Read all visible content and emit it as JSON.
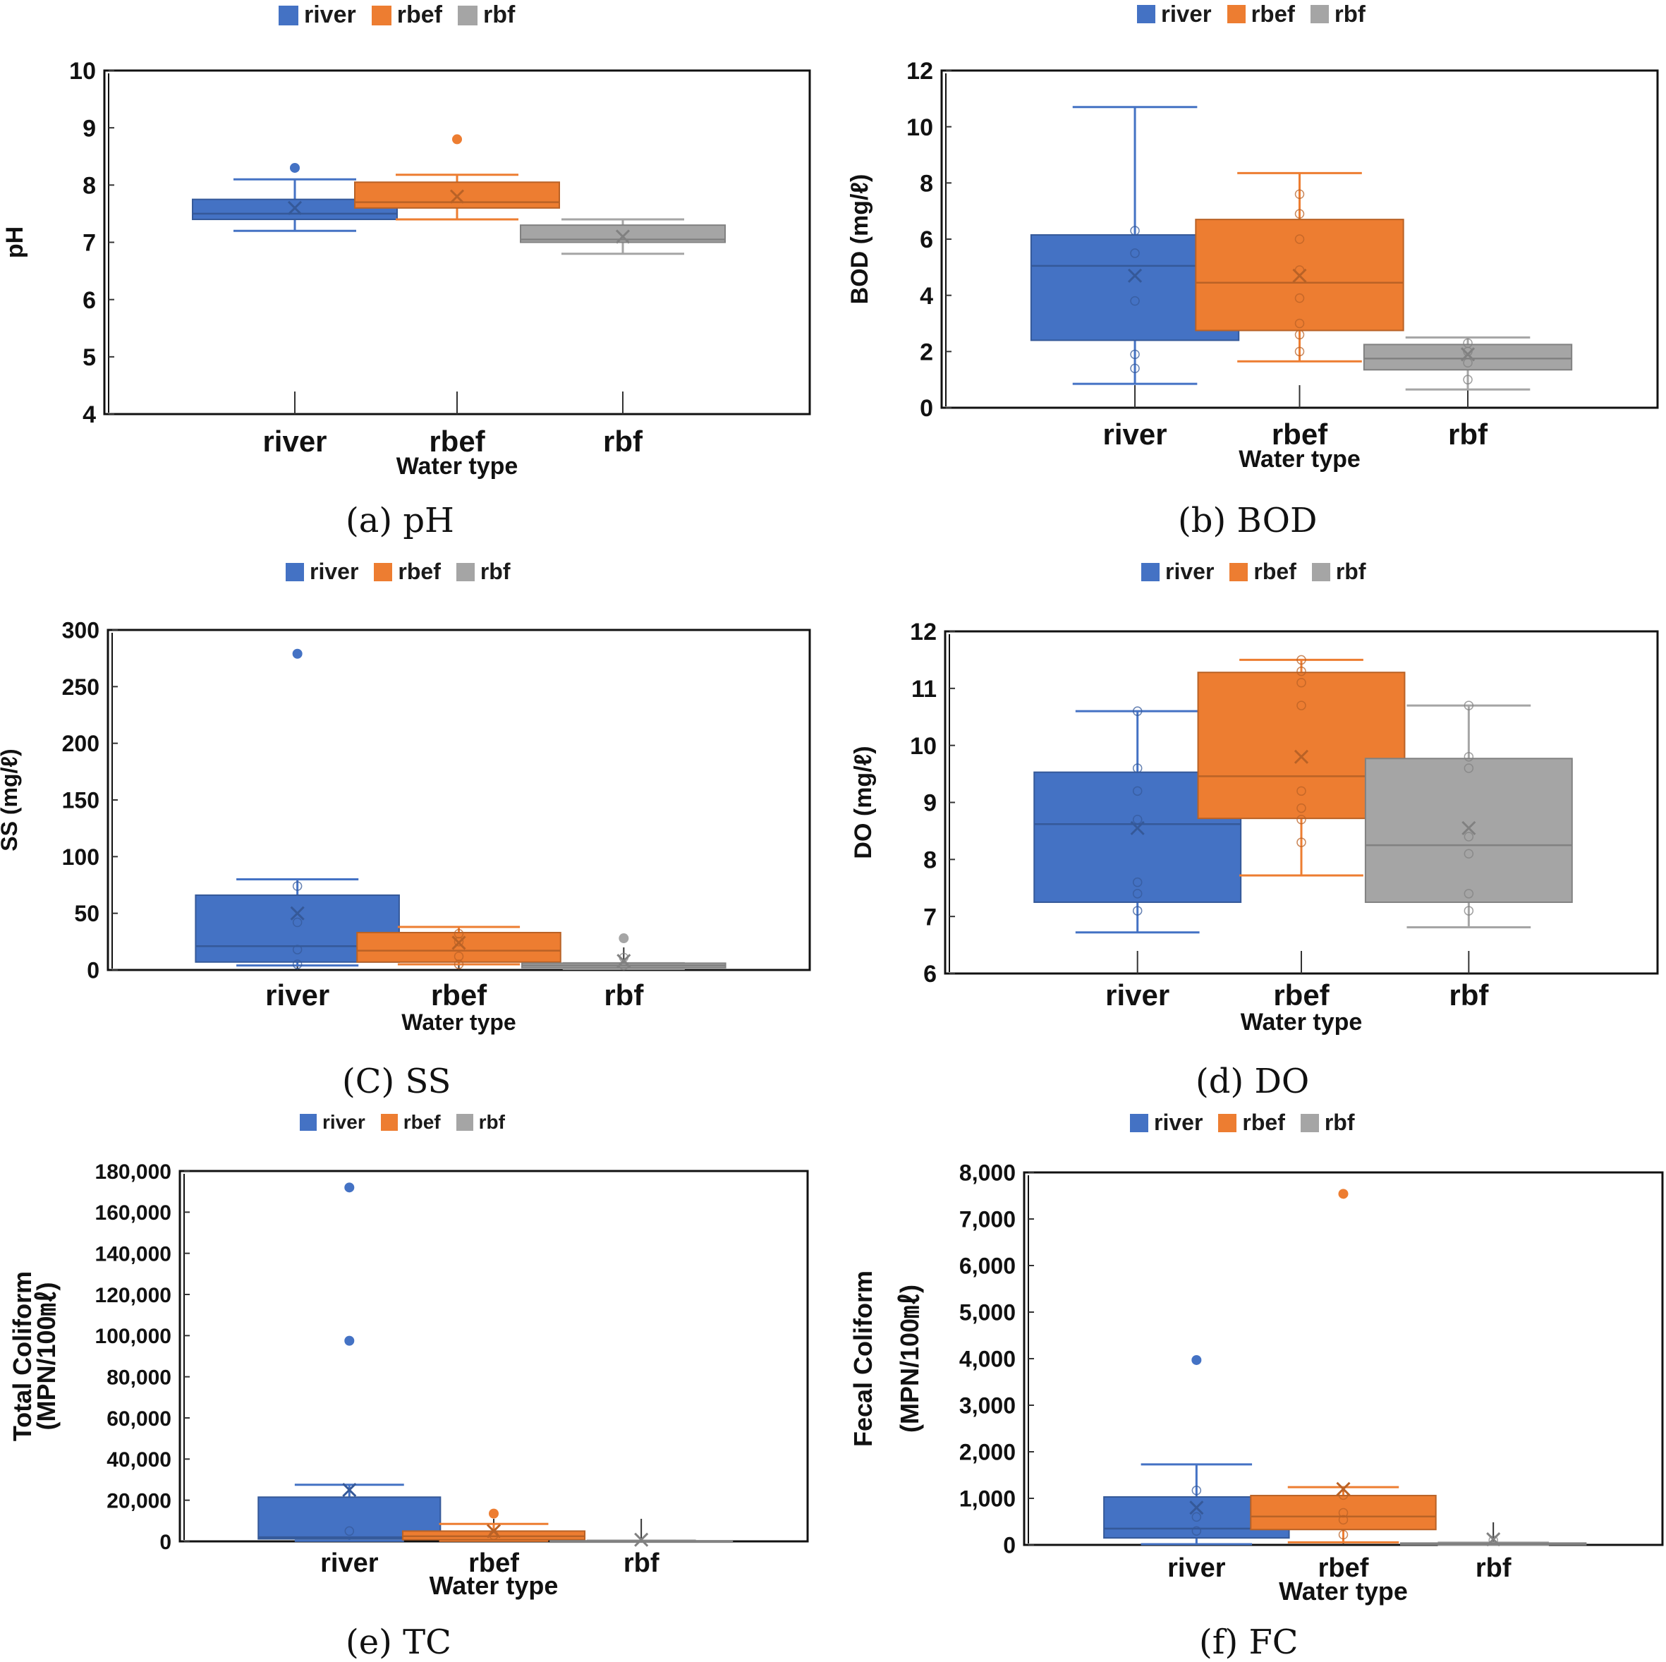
{
  "colors": {
    "river": "#4472C4",
    "rbef": "#ED7D31",
    "rbf": "#A5A5A5",
    "axis": "#111111"
  },
  "legend": [
    {
      "key": "river",
      "label": "river"
    },
    {
      "key": "rbef",
      "label": "rbef"
    },
    {
      "key": "rbf",
      "label": "rbf"
    }
  ],
  "chart_data": [
    {
      "id": "ph",
      "type": "box",
      "caption": "(a)  pH",
      "title": "",
      "xlabel": "Water type",
      "ylabel": "pH",
      "ylabel2": "",
      "categories": [
        "river",
        "rbef",
        "rbf"
      ],
      "ylim": [
        4,
        10
      ],
      "yticks": [
        4,
        5,
        6,
        7,
        8,
        9,
        10
      ],
      "ytick_labels": [
        "4",
        "5",
        "6",
        "7",
        "8",
        "9",
        "10"
      ],
      "legend_position": "top-center",
      "grid": false,
      "series": [
        {
          "name": "river",
          "whisker_low": 7.2,
          "q1": 7.4,
          "median": 7.5,
          "q3": 7.75,
          "whisker_high": 8.1,
          "mean": 7.6,
          "points": [],
          "outliers": [
            8.3
          ]
        },
        {
          "name": "rbef",
          "whisker_low": 7.4,
          "q1": 7.6,
          "median": 7.7,
          "q3": 8.05,
          "whisker_high": 8.18,
          "mean": 7.8,
          "points": [],
          "outliers": [
            8.8
          ]
        },
        {
          "name": "rbf",
          "whisker_low": 6.8,
          "q1": 7.0,
          "median": 7.05,
          "q3": 7.3,
          "whisker_high": 7.4,
          "mean": 7.1,
          "points": [],
          "outliers": []
        }
      ]
    },
    {
      "id": "bod",
      "type": "box",
      "caption": "(b)  BOD",
      "title": "",
      "xlabel": "Water type",
      "ylabel": "BOD (mg/ℓ)",
      "ylabel2": "",
      "categories": [
        "river",
        "rbef",
        "rbf"
      ],
      "ylim": [
        0,
        12
      ],
      "yticks": [
        0,
        2,
        4,
        6,
        8,
        10,
        12
      ],
      "ytick_labels": [
        "0",
        "2",
        "4",
        "6",
        "8",
        "10",
        "12"
      ],
      "legend_position": "top-center",
      "grid": false,
      "series": [
        {
          "name": "river",
          "whisker_low": 0.85,
          "q1": 2.4,
          "median": 5.05,
          "q3": 6.15,
          "whisker_high": 10.7,
          "mean": 4.7,
          "points": [
            6.3,
            5.5,
            3.8,
            1.9,
            1.4
          ],
          "outliers": []
        },
        {
          "name": "rbef",
          "whisker_low": 1.65,
          "q1": 2.75,
          "median": 4.45,
          "q3": 6.7,
          "whisker_high": 8.35,
          "mean": 4.7,
          "points": [
            7.6,
            6.9,
            6.0,
            4.9,
            3.9,
            3.0,
            2.6,
            2.0
          ],
          "outliers": []
        },
        {
          "name": "rbf",
          "whisker_low": 0.65,
          "q1": 1.35,
          "median": 1.75,
          "q3": 2.25,
          "whisker_high": 2.5,
          "mean": 1.9,
          "points": [
            2.3,
            2.0,
            1.6,
            1.0
          ],
          "outliers": []
        }
      ]
    },
    {
      "id": "ss",
      "type": "box",
      "caption": "(C)  SS",
      "title": "",
      "xlabel": "Water type",
      "ylabel": "SS (mg/ℓ)",
      "ylabel2": "",
      "categories": [
        "river",
        "rbef",
        "rbf"
      ],
      "ylim": [
        0,
        300
      ],
      "yticks": [
        0,
        50,
        100,
        150,
        200,
        250,
        300
      ],
      "ytick_labels": [
        "0",
        "50",
        "100",
        "150",
        "200",
        "250",
        "300"
      ],
      "legend_position": "top-center",
      "grid": false,
      "series": [
        {
          "name": "river",
          "whisker_low": 4,
          "q1": 7,
          "median": 21,
          "q3": 66,
          "whisker_high": 80,
          "mean": 50,
          "points": [
            74,
            42,
            18,
            5
          ],
          "outliers": [
            279
          ]
        },
        {
          "name": "rbef",
          "whisker_low": 5,
          "q1": 7,
          "median": 17,
          "q3": 33,
          "whisker_high": 38,
          "mean": 24,
          "points": [
            32,
            25,
            12,
            5
          ],
          "outliers": []
        },
        {
          "name": "rbf",
          "whisker_low": 1,
          "q1": 2,
          "median": 4,
          "q3": 6,
          "whisker_high": 6,
          "mean": 8,
          "points": [
            11,
            4
          ],
          "outliers": [
            28
          ]
        }
      ]
    },
    {
      "id": "do",
      "type": "box",
      "caption": "(d)  DO",
      "title": "",
      "xlabel": "Water type",
      "ylabel": "DO (mg/ℓ)",
      "ylabel2": "",
      "categories": [
        "river",
        "rbef",
        "rbf"
      ],
      "ylim": [
        6,
        12
      ],
      "yticks": [
        6,
        7,
        8,
        9,
        10,
        11,
        12
      ],
      "ytick_labels": [
        "6",
        "7",
        "8",
        "9",
        "10",
        "11",
        "12"
      ],
      "legend_position": "top-center",
      "grid": false,
      "series": [
        {
          "name": "river",
          "whisker_low": 6.72,
          "q1": 7.25,
          "median": 8.62,
          "q3": 9.53,
          "whisker_high": 10.6,
          "mean": 8.55,
          "points": [
            10.6,
            9.6,
            9.2,
            8.7,
            7.6,
            7.4,
            7.1
          ],
          "outliers": []
        },
        {
          "name": "rbef",
          "whisker_low": 7.72,
          "q1": 8.72,
          "median": 9.46,
          "q3": 11.28,
          "whisker_high": 11.5,
          "mean": 9.8,
          "points": [
            11.5,
            11.3,
            11.1,
            10.7,
            9.2,
            8.9,
            8.7,
            8.3
          ],
          "outliers": []
        },
        {
          "name": "rbf",
          "whisker_low": 6.81,
          "q1": 7.25,
          "median": 8.25,
          "q3": 9.77,
          "whisker_high": 10.7,
          "mean": 8.55,
          "points": [
            10.7,
            9.8,
            9.6,
            8.4,
            8.1,
            7.4,
            7.1
          ],
          "outliers": []
        }
      ]
    },
    {
      "id": "tc",
      "type": "box",
      "caption": "(e)  TC",
      "title": "",
      "xlabel": "Water type",
      "ylabel": "Total Coliform",
      "ylabel2": "(MPN/100㎖)",
      "categories": [
        "river",
        "rbef",
        "rbf"
      ],
      "ylim": [
        0,
        180000
      ],
      "yticks": [
        0,
        20000,
        40000,
        60000,
        80000,
        100000,
        120000,
        140000,
        160000,
        180000
      ],
      "ytick_labels": [
        "0",
        "20,000",
        "40,000",
        "60,000",
        "80,000",
        "100,000",
        "120,000",
        "140,000",
        "160,000",
        "180,000"
      ],
      "legend_position": "top-center",
      "grid": false,
      "series": [
        {
          "name": "river",
          "whisker_low": 300,
          "q1": 1200,
          "median": 2000,
          "q3": 21500,
          "whisker_high": 27500,
          "mean": 25000,
          "points": [
            5000
          ],
          "outliers": [
            172000,
            97500
          ]
        },
        {
          "name": "rbef",
          "whisker_low": 300,
          "q1": 800,
          "median": 2500,
          "q3": 5000,
          "whisker_high": 8500,
          "mean": 5000,
          "points": [
            3000
          ],
          "outliers": [
            13500
          ]
        },
        {
          "name": "rbf",
          "whisker_low": 0,
          "q1": 0,
          "median": 100,
          "q3": 300,
          "whisker_high": 400,
          "mean": 800,
          "points": [],
          "outliers": []
        }
      ]
    },
    {
      "id": "fc",
      "type": "box",
      "caption": "(f)  FC",
      "title": "",
      "xlabel": "Water type",
      "ylabel": "Fecal Coliform",
      "ylabel2": "(MPN/100㎖)",
      "categories": [
        "river",
        "rbef",
        "rbf"
      ],
      "ylim": [
        0,
        8000
      ],
      "yticks": [
        0,
        1000,
        2000,
        3000,
        4000,
        5000,
        6000,
        7000,
        8000
      ],
      "ytick_labels": [
        "0",
        "1,000",
        "2,000",
        "3,000",
        "4,000",
        "5,000",
        "6,000",
        "7,000",
        "8,000"
      ],
      "legend_position": "top-center",
      "grid": false,
      "series": [
        {
          "name": "river",
          "whisker_low": 15,
          "q1": 150,
          "median": 350,
          "q3": 1030,
          "whisker_high": 1730,
          "mean": 800,
          "points": [
            1170,
            600,
            300
          ],
          "outliers": [
            3970
          ]
        },
        {
          "name": "rbef",
          "whisker_low": 55,
          "q1": 330,
          "median": 610,
          "q3": 1060,
          "whisker_high": 1240,
          "mean": 1200,
          "points": [
            1070,
            690,
            540,
            220
          ],
          "outliers": [
            7540
          ]
        },
        {
          "name": "rbf",
          "whisker_low": 0,
          "q1": 5,
          "median": 20,
          "q3": 40,
          "whisker_high": 50,
          "mean": 120,
          "points": [
            100
          ],
          "outliers": []
        }
      ]
    }
  ]
}
